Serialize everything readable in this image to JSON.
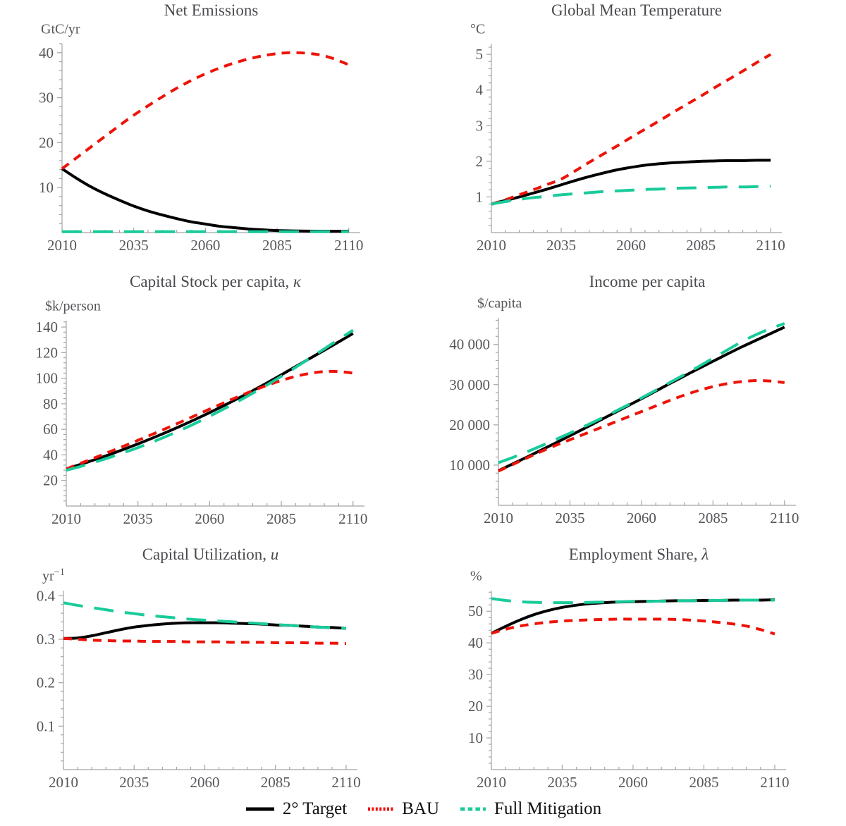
{
  "palette": {
    "target": "#000000",
    "bau": "#ED1309",
    "mitigation": "#19CB9A",
    "axis": "#A5A5A5",
    "tick_label": "#56565A",
    "title": "#4A4A4E"
  },
  "legend": {
    "items": [
      {
        "label": "2° Target",
        "key": "target",
        "swatch": "solid"
      },
      {
        "label": "BAU",
        "key": "bau",
        "swatch": "fine-dashed"
      },
      {
        "label": "Full Mitigation",
        "key": "mitigation",
        "swatch": "short-dashed"
      }
    ]
  },
  "chart_data": [
    {
      "type": "line",
      "title_prefix": "Net Emissions",
      "title_symbol": "",
      "unit_label": "GtC/yr",
      "unit_sup": "",
      "x": [
        2010,
        2015,
        2020,
        2025,
        2030,
        2035,
        2040,
        2045,
        2050,
        2055,
        2060,
        2065,
        2070,
        2075,
        2080,
        2085,
        2090,
        2095,
        2100,
        2105,
        2110
      ],
      "xlim": [
        2010,
        2114
      ],
      "ylim": [
        0,
        42
      ],
      "xticks": [
        2010,
        2035,
        2060,
        2085,
        2110
      ],
      "xticklabels": [
        "2010",
        "2035",
        "2060",
        "2085",
        "2110"
      ],
      "yticks": [
        10,
        20,
        30,
        40
      ],
      "yticklabels": [
        "10",
        "20",
        "30",
        "40"
      ],
      "series": [
        {
          "name": "2° Target",
          "key": "target",
          "values": [
            14.2,
            12.1,
            10.2,
            8.6,
            7.2,
            5.9,
            4.8,
            3.9,
            3.1,
            2.4,
            1.9,
            1.4,
            1.1,
            0.8,
            0.6,
            0.45,
            0.38,
            0.33,
            0.3,
            0.3,
            0.3
          ]
        },
        {
          "name": "BAU",
          "key": "bau",
          "values": [
            14.2,
            16.6,
            19.0,
            21.4,
            23.8,
            26.1,
            28.2,
            30.2,
            32.1,
            33.8,
            35.3,
            36.6,
            37.7,
            38.6,
            39.3,
            39.8,
            40.0,
            39.9,
            39.5,
            38.6,
            37.3
          ]
        },
        {
          "name": "Full Mitigation",
          "key": "mitigation",
          "values": [
            0.2,
            0.2,
            0.2,
            0.2,
            0.2,
            0.2,
            0.2,
            0.2,
            0.2,
            0.2,
            0.2,
            0.2,
            0.2,
            0.2,
            0.2,
            0.2,
            0.2,
            0.2,
            0.2,
            0.2,
            0.2
          ]
        }
      ]
    },
    {
      "type": "line",
      "title_prefix": "Global Mean Temperature",
      "title_symbol": "",
      "unit_label": "°C",
      "unit_sup": "",
      "x": [
        2010,
        2015,
        2020,
        2025,
        2030,
        2035,
        2040,
        2045,
        2050,
        2055,
        2060,
        2065,
        2070,
        2075,
        2080,
        2085,
        2090,
        2095,
        2100,
        2105,
        2110
      ],
      "xlim": [
        2010,
        2114
      ],
      "ylim": [
        0,
        5.3
      ],
      "xticks": [
        2010,
        2035,
        2060,
        2085,
        2110
      ],
      "xticklabels": [
        "2010",
        "2035",
        "2060",
        "2085",
        "2110"
      ],
      "yticks": [
        1,
        2,
        3,
        4,
        5
      ],
      "yticklabels": [
        "1",
        "2",
        "3",
        "4",
        "5"
      ],
      "series": [
        {
          "name": "2° Target",
          "key": "target",
          "values": [
            0.8,
            0.9,
            1.0,
            1.11,
            1.22,
            1.34,
            1.46,
            1.57,
            1.67,
            1.76,
            1.83,
            1.89,
            1.93,
            1.96,
            1.98,
            2.0,
            2.01,
            2.02,
            2.02,
            2.03,
            2.03
          ]
        },
        {
          "name": "BAU",
          "key": "bau",
          "values": [
            0.8,
            0.92,
            1.06,
            1.2,
            1.35,
            1.5,
            1.73,
            1.97,
            2.2,
            2.43,
            2.67,
            2.9,
            3.13,
            3.37,
            3.6,
            3.83,
            4.07,
            4.3,
            4.53,
            4.77,
            5.0
          ]
        },
        {
          "name": "Full Mitigation",
          "key": "mitigation",
          "values": [
            0.8,
            0.87,
            0.93,
            0.98,
            1.02,
            1.06,
            1.09,
            1.12,
            1.15,
            1.17,
            1.19,
            1.21,
            1.22,
            1.24,
            1.25,
            1.26,
            1.27,
            1.28,
            1.28,
            1.29,
            1.3
          ]
        }
      ]
    },
    {
      "type": "line",
      "title_prefix": "Capital Stock per capita, ",
      "title_symbol": "κ",
      "unit_label": "$k/person",
      "unit_sup": "",
      "x": [
        2010,
        2015,
        2020,
        2025,
        2030,
        2035,
        2040,
        2045,
        2050,
        2055,
        2060,
        2065,
        2070,
        2075,
        2080,
        2085,
        2090,
        2095,
        2100,
        2105,
        2110
      ],
      "xlim": [
        2010,
        2114
      ],
      "ylim": [
        0,
        145
      ],
      "xticks": [
        2010,
        2035,
        2060,
        2085,
        2110
      ],
      "xticklabels": [
        "2010",
        "2035",
        "2060",
        "2085",
        "2110"
      ],
      "yticks": [
        20,
        40,
        60,
        80,
        100,
        120,
        140
      ],
      "yticklabels": [
        "20",
        "40",
        "60",
        "80",
        "100",
        "120",
        "140"
      ],
      "series": [
        {
          "name": "2° Target",
          "key": "target",
          "values": [
            29,
            32.6,
            36.3,
            40.2,
            44.3,
            48.6,
            53.1,
            57.8,
            62.7,
            67.8,
            73.1,
            78.6,
            84.3,
            90.2,
            96.3,
            102.6,
            109.1,
            115.5,
            121.9,
            128.4,
            135
          ]
        },
        {
          "name": "BAU",
          "key": "bau",
          "values": [
            29,
            33.4,
            37.8,
            42.3,
            46.8,
            51.4,
            56.1,
            60.9,
            65.8,
            70.8,
            75.8,
            80.8,
            85.6,
            90.2,
            94.4,
            98.2,
            101.4,
            103.8,
            105.2,
            105.2,
            104
          ]
        },
        {
          "name": "Full Mitigation",
          "key": "mitigation",
          "values": [
            28,
            31,
            34.3,
            37.9,
            41.7,
            45.7,
            50,
            54.6,
            59.5,
            64.7,
            70.2,
            76,
            82,
            88.2,
            94.7,
            101.5,
            108.5,
            115.7,
            123,
            130.3,
            137.5
          ]
        }
      ]
    },
    {
      "type": "line",
      "title_prefix": "Income per capita",
      "title_symbol": "",
      "unit_label": "$/capita",
      "unit_sup": "",
      "x": [
        2010,
        2015,
        2020,
        2025,
        2030,
        2035,
        2040,
        2045,
        2050,
        2055,
        2060,
        2065,
        2070,
        2075,
        2080,
        2085,
        2090,
        2095,
        2100,
        2105,
        2110
      ],
      "xlim": [
        2010,
        2114
      ],
      "ylim": [
        0,
        46600
      ],
      "xticks": [
        2010,
        2035,
        2060,
        2085,
        2110
      ],
      "xticklabels": [
        "2010",
        "2035",
        "2060",
        "2085",
        "2110"
      ],
      "yticks": [
        10000,
        20000,
        30000,
        40000
      ],
      "yticklabels": [
        "10 000",
        "20 000",
        "30 000",
        "40 000"
      ],
      "series": [
        {
          "name": "2° Target",
          "key": "target",
          "values": [
            8600,
            10300,
            12000,
            13750,
            15500,
            17300,
            19100,
            20950,
            22800,
            24650,
            26500,
            28400,
            30300,
            32150,
            34000,
            35800,
            37600,
            39350,
            41000,
            42650,
            44300
          ]
        },
        {
          "name": "BAU",
          "key": "bau",
          "values": [
            8500,
            10150,
            11800,
            13400,
            14900,
            16300,
            17700,
            19100,
            20500,
            21900,
            23300,
            24700,
            26100,
            27400,
            28550,
            29500,
            30250,
            30750,
            31000,
            30900,
            30500
          ]
        },
        {
          "name": "Full Mitigation",
          "key": "mitigation",
          "values": [
            10600,
            11900,
            13300,
            14800,
            16350,
            17950,
            19600,
            21300,
            23050,
            24850,
            26700,
            28600,
            30550,
            32500,
            34500,
            36550,
            38600,
            40650,
            42400,
            43900,
            45200
          ]
        }
      ]
    },
    {
      "type": "line",
      "title_prefix": "Capital Utilization, ",
      "title_symbol": "u",
      "unit_label": "yr",
      "unit_sup": "−1",
      "x": [
        2010,
        2015,
        2020,
        2025,
        2030,
        2035,
        2040,
        2045,
        2050,
        2055,
        2060,
        2065,
        2070,
        2075,
        2080,
        2085,
        2090,
        2095,
        2100,
        2105,
        2110
      ],
      "xlim": [
        2010,
        2114
      ],
      "ylim": [
        0,
        0.412
      ],
      "xticks": [
        2010,
        2035,
        2060,
        2085,
        2110
      ],
      "xticklabels": [
        "2010",
        "2035",
        "2060",
        "2085",
        "2110"
      ],
      "yticks": [
        0.1,
        0.2,
        0.3,
        0.4
      ],
      "yticklabels": [
        "0.1",
        "0.2",
        "0.3",
        "0.4"
      ],
      "series": [
        {
          "name": "2° Target",
          "key": "target",
          "values": [
            0.302,
            0.303,
            0.308,
            0.315,
            0.322,
            0.328,
            0.332,
            0.335,
            0.337,
            0.338,
            0.338,
            0.338,
            0.337,
            0.336,
            0.335,
            0.333,
            0.332,
            0.33,
            0.328,
            0.327,
            0.325
          ]
        },
        {
          "name": "BAU",
          "key": "bau",
          "values": [
            0.302,
            0.3,
            0.298,
            0.297,
            0.296,
            0.296,
            0.295,
            0.295,
            0.295,
            0.294,
            0.294,
            0.294,
            0.293,
            0.293,
            0.293,
            0.292,
            0.292,
            0.292,
            0.291,
            0.291,
            0.29
          ]
        },
        {
          "name": "Full Mitigation",
          "key": "mitigation",
          "values": [
            0.384,
            0.378,
            0.373,
            0.368,
            0.363,
            0.359,
            0.355,
            0.352,
            0.349,
            0.346,
            0.344,
            0.342,
            0.34,
            0.338,
            0.336,
            0.334,
            0.332,
            0.33,
            0.328,
            0.327,
            0.325
          ]
        }
      ]
    },
    {
      "type": "line",
      "title_prefix": "Employment Share, ",
      "title_symbol": "λ",
      "unit_label": "%",
      "unit_sup": "",
      "x": [
        2010,
        2015,
        2020,
        2025,
        2030,
        2035,
        2040,
        2045,
        2050,
        2055,
        2060,
        2065,
        2070,
        2075,
        2080,
        2085,
        2090,
        2095,
        2100,
        2105,
        2110
      ],
      "xlim": [
        2010,
        2114
      ],
      "ylim": [
        0,
        56.5
      ],
      "xticks": [
        2010,
        2035,
        2060,
        2085,
        2110
      ],
      "xticklabels": [
        "2010",
        "2035",
        "2060",
        "2085",
        "2110"
      ],
      "yticks": [
        10,
        20,
        30,
        40,
        50
      ],
      "yticklabels": [
        "10",
        "20",
        "30",
        "40",
        "50"
      ],
      "series": [
        {
          "name": "2° Target",
          "key": "target",
          "values": [
            43,
            45.2,
            47.2,
            48.9,
            50.2,
            51.2,
            51.9,
            52.4,
            52.7,
            52.9,
            53.0,
            53.1,
            53.2,
            53.3,
            53.3,
            53.4,
            53.4,
            53.5,
            53.5,
            53.5,
            53.6
          ]
        },
        {
          "name": "BAU",
          "key": "bau",
          "values": [
            43,
            44.3,
            45.3,
            46.0,
            46.5,
            46.9,
            47.1,
            47.3,
            47.4,
            47.5,
            47.5,
            47.5,
            47.5,
            47.4,
            47.2,
            46.9,
            46.5,
            46.0,
            45.3,
            44.2,
            42.8
          ]
        },
        {
          "name": "Full Mitigation",
          "key": "mitigation",
          "values": [
            54,
            53.4,
            53.0,
            52.8,
            52.7,
            52.7,
            52.7,
            52.8,
            52.9,
            53.0,
            53.1,
            53.1,
            53.2,
            53.3,
            53.3,
            53.4,
            53.4,
            53.5,
            53.5,
            53.5,
            53.5
          ]
        }
      ]
    }
  ]
}
